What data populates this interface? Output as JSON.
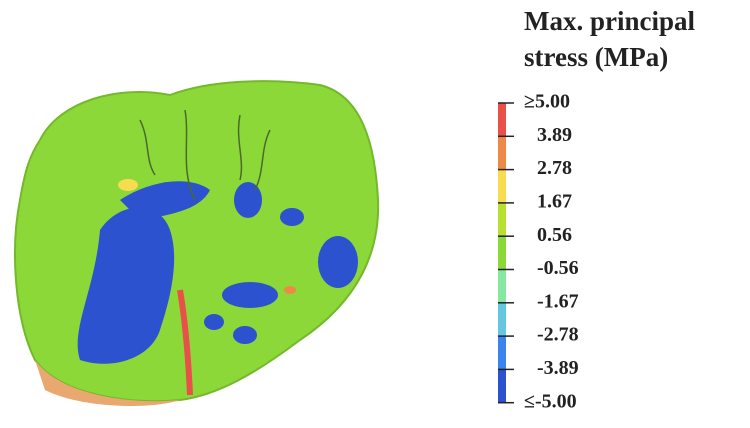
{
  "legend": {
    "title_lines": [
      "Max. principal",
      "stress (MPa)"
    ],
    "labels": [
      "≥5.00",
      "3.89",
      "2.78",
      "1.67",
      "0.56",
      "-0.56",
      "-1.67",
      "-2.78",
      "-3.89",
      "≤-5.00"
    ],
    "colors": [
      "#e8504a",
      "#ee8a48",
      "#f8dc50",
      "#b8e030",
      "#8cd838",
      "#86e8a0",
      "#66c8e0",
      "#3a84f0",
      "#2c52d0"
    ]
  }
}
